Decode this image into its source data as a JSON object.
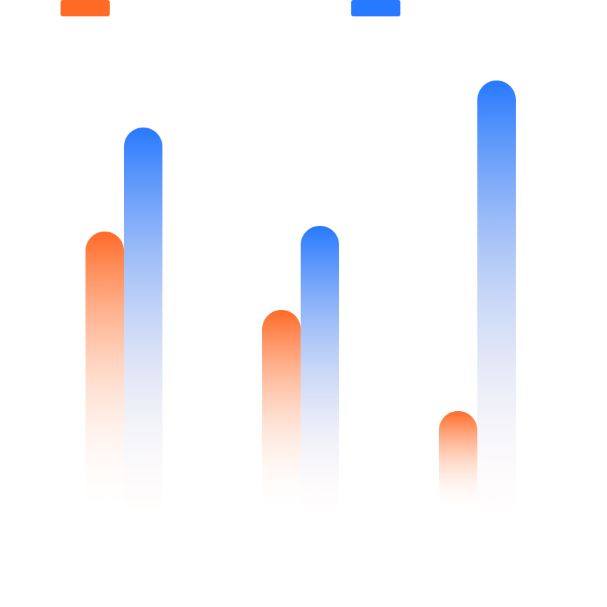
{
  "chart_data": {
    "type": "bar",
    "categories": [
      "",
      "",
      ""
    ],
    "series": [
      {
        "color": "#ff6a26",
        "values": [
          390,
          280,
          138
        ]
      },
      {
        "color": "#2779ff",
        "values": [
          536,
          398,
          602
        ]
      }
    ],
    "ylim": [
      0,
      715
    ],
    "grid": false,
    "legend_position": "top",
    "legend_labels": [
      "",
      ""
    ],
    "title": "",
    "xlabel": "",
    "ylabel": ""
  }
}
